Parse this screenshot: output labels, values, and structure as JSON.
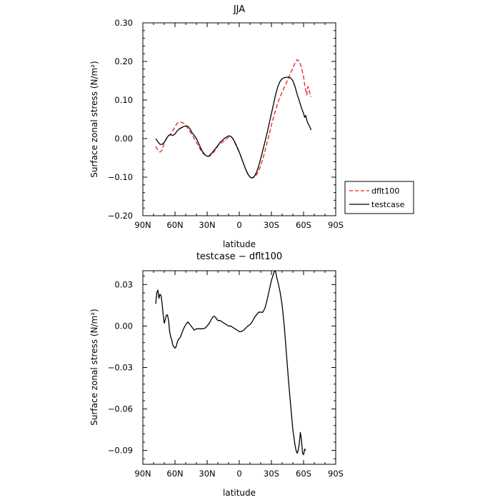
{
  "chart_data": [
    {
      "type": "line",
      "title": "JJA",
      "xlabel": "latitude",
      "ylabel": "Surface zonal stress (N/m²)",
      "xlim": [
        90,
        -90
      ],
      "ylim": [
        -0.2,
        0.3
      ],
      "x_tick_values": [
        90,
        60,
        30,
        0,
        -30,
        -60,
        -90
      ],
      "x_tick_labels": [
        "90N",
        "60N",
        "30N",
        "0",
        "30S",
        "60S",
        "90S"
      ],
      "y_tick_values": [
        -0.2,
        -0.1,
        0.0,
        0.1,
        0.2,
        0.3
      ],
      "y_tick_labels": [
        "−0.20",
        "−0.10",
        "0.00",
        "0.10",
        "0.20",
        "0.30"
      ],
      "legend_position": "right-bottom",
      "series": [
        {
          "name": "dflt100",
          "style": "dashed",
          "color": "#e8201f",
          "points": [
            [
              78,
              -0.02
            ],
            [
              76,
              -0.03
            ],
            [
              74,
              -0.035
            ],
            [
              72,
              -0.03
            ],
            [
              70,
              -0.01
            ],
            [
              67,
              0.005
            ],
            [
              64,
              0.012
            ],
            [
              61,
              0.025
            ],
            [
              58,
              0.04
            ],
            [
              55,
              0.043
            ],
            [
              52,
              0.04
            ],
            [
              49,
              0.03
            ],
            [
              46,
              0.018
            ],
            [
              43,
              0.005
            ],
            [
              40,
              -0.01
            ],
            [
              37,
              -0.025
            ],
            [
              34,
              -0.038
            ],
            [
              31,
              -0.045
            ],
            [
              28,
              -0.046
            ],
            [
              25,
              -0.04
            ],
            [
              22,
              -0.028
            ],
            [
              19,
              -0.015
            ],
            [
              16,
              -0.01
            ],
            [
              13,
              -0.003
            ],
            [
              10,
              0.003
            ],
            [
              8,
              0.006
            ],
            [
              6,
              0.0
            ],
            [
              4,
              -0.012
            ],
            [
              2,
              -0.025
            ],
            [
              0,
              -0.035
            ],
            [
              -2,
              -0.05
            ],
            [
              -4,
              -0.065
            ],
            [
              -6,
              -0.08
            ],
            [
              -8,
              -0.092
            ],
            [
              -10,
              -0.1
            ],
            [
              -12,
              -0.102
            ],
            [
              -14,
              -0.1
            ],
            [
              -16,
              -0.094
            ],
            [
              -18,
              -0.085
            ],
            [
              -20,
              -0.07
            ],
            [
              -22,
              -0.052
            ],
            [
              -24,
              -0.032
            ],
            [
              -26,
              -0.01
            ],
            [
              -28,
              0.012
            ],
            [
              -30,
              0.035
            ],
            [
              -32,
              0.055
            ],
            [
              -34,
              0.075
            ],
            [
              -36,
              0.093
            ],
            [
              -38,
              0.108
            ],
            [
              -40,
              0.12
            ],
            [
              -42,
              0.133
            ],
            [
              -44,
              0.145
            ],
            [
              -46,
              0.158
            ],
            [
              -48,
              0.17
            ],
            [
              -50,
              0.183
            ],
            [
              -52,
              0.196
            ],
            [
              -54,
              0.205
            ],
            [
              -56,
              0.2
            ],
            [
              -58,
              0.185
            ],
            [
              -60,
              0.16
            ],
            [
              -61,
              0.14
            ],
            [
              -62,
              0.125
            ],
            [
              -63,
              0.113
            ],
            [
              -64,
              0.135
            ],
            [
              -65,
              0.13
            ],
            [
              -66,
              0.115
            ],
            [
              -67,
              0.108
            ]
          ]
        },
        {
          "name": "testcase",
          "style": "solid",
          "color": "#000000",
          "points": [
            [
              78,
              0.0
            ],
            [
              76,
              -0.008
            ],
            [
              74,
              -0.015
            ],
            [
              72,
              -0.015
            ],
            [
              70,
              -0.01
            ],
            [
              68,
              0.0
            ],
            [
              66,
              0.008
            ],
            [
              64,
              0.01
            ],
            [
              62,
              0.008
            ],
            [
              60,
              0.012
            ],
            [
              58,
              0.02
            ],
            [
              56,
              0.025
            ],
            [
              54,
              0.028
            ],
            [
              52,
              0.031
            ],
            [
              50,
              0.033
            ],
            [
              48,
              0.032
            ],
            [
              46,
              0.025
            ],
            [
              44,
              0.015
            ],
            [
              42,
              0.008
            ],
            [
              40,
              0.0
            ],
            [
              38,
              -0.012
            ],
            [
              36,
              -0.025
            ],
            [
              34,
              -0.035
            ],
            [
              32,
              -0.042
            ],
            [
              30,
              -0.046
            ],
            [
              28,
              -0.045
            ],
            [
              26,
              -0.038
            ],
            [
              24,
              -0.032
            ],
            [
              22,
              -0.025
            ],
            [
              20,
              -0.018
            ],
            [
              18,
              -0.01
            ],
            [
              16,
              -0.005
            ],
            [
              14,
              0.0
            ],
            [
              12,
              0.004
            ],
            [
              10,
              0.007
            ],
            [
              8,
              0.006
            ],
            [
              6,
              0.0
            ],
            [
              4,
              -0.01
            ],
            [
              2,
              -0.022
            ],
            [
              0,
              -0.035
            ],
            [
              -2,
              -0.05
            ],
            [
              -4,
              -0.065
            ],
            [
              -6,
              -0.08
            ],
            [
              -8,
              -0.092
            ],
            [
              -10,
              -0.1
            ],
            [
              -12,
              -0.102
            ],
            [
              -14,
              -0.098
            ],
            [
              -16,
              -0.088
            ],
            [
              -18,
              -0.072
            ],
            [
              -20,
              -0.052
            ],
            [
              -22,
              -0.03
            ],
            [
              -24,
              -0.008
            ],
            [
              -26,
              0.015
            ],
            [
              -28,
              0.04
            ],
            [
              -30,
              0.065
            ],
            [
              -32,
              0.09
            ],
            [
              -34,
              0.115
            ],
            [
              -36,
              0.135
            ],
            [
              -38,
              0.148
            ],
            [
              -40,
              0.155
            ],
            [
              -42,
              0.158
            ],
            [
              -44,
              0.159
            ],
            [
              -46,
              0.159
            ],
            [
              -48,
              0.157
            ],
            [
              -50,
              0.15
            ],
            [
              -52,
              0.135
            ],
            [
              -54,
              0.115
            ],
            [
              -56,
              0.098
            ],
            [
              -58,
              0.08
            ],
            [
              -60,
              0.065
            ],
            [
              -61,
              0.055
            ],
            [
              -62,
              0.06
            ],
            [
              -63,
              0.048
            ],
            [
              -64,
              0.04
            ],
            [
              -65,
              0.035
            ],
            [
              -66,
              0.03
            ],
            [
              -67,
              0.022
            ]
          ]
        }
      ]
    },
    {
      "type": "line",
      "title": "testcase − dflt100",
      "xlabel": "latitude",
      "ylabel": "Surface zonal stress (N/m²)",
      "xlim": [
        90,
        -90
      ],
      "ylim": [
        -0.1,
        0.04
      ],
      "x_tick_values": [
        90,
        60,
        30,
        0,
        -30,
        -60,
        -90
      ],
      "x_tick_labels": [
        "90N",
        "60N",
        "30N",
        "0",
        "30S",
        "60S",
        "90S"
      ],
      "y_tick_values": [
        -0.09,
        -0.06,
        -0.03,
        0.0,
        0.03
      ],
      "y_tick_labels": [
        "−0.09",
        "−0.06",
        "−0.03",
        "0.00",
        "0.03"
      ],
      "series": [
        {
          "name": "",
          "style": "solid",
          "color": "#000000",
          "points": [
            [
              78,
              0.016
            ],
            [
              77,
              0.024
            ],
            [
              76,
              0.026
            ],
            [
              75,
              0.02
            ],
            [
              74,
              0.023
            ],
            [
              73,
              0.022
            ],
            [
              72,
              0.016
            ],
            [
              71,
              0.008
            ],
            [
              70,
              0.002
            ],
            [
              69,
              0.005
            ],
            [
              68,
              0.008
            ],
            [
              67,
              0.008
            ],
            [
              66,
              0.004
            ],
            [
              65,
              -0.004
            ],
            [
              64,
              -0.008
            ],
            [
              63,
              -0.01
            ],
            [
              62,
              -0.014
            ],
            [
              61,
              -0.015
            ],
            [
              60,
              -0.016
            ],
            [
              59,
              -0.015
            ],
            [
              58,
              -0.012
            ],
            [
              57,
              -0.01
            ],
            [
              56,
              -0.009
            ],
            [
              55,
              -0.008
            ],
            [
              54,
              -0.006
            ],
            [
              53,
              -0.004
            ],
            [
              52,
              -0.002
            ],
            [
              50,
              0.001
            ],
            [
              48,
              0.003
            ],
            [
              47,
              0.002
            ],
            [
              46,
              0.001
            ],
            [
              44,
              -0.001
            ],
            [
              42,
              -0.003
            ],
            [
              40,
              -0.002
            ],
            [
              38,
              -0.002
            ],
            [
              36,
              -0.002
            ],
            [
              34,
              -0.002
            ],
            [
              32,
              -0.0015
            ],
            [
              30,
              0.0
            ],
            [
              28,
              0.002
            ],
            [
              26,
              0.005
            ],
            [
              25,
              0.006
            ],
            [
              24,
              0.007
            ],
            [
              23,
              0.007
            ],
            [
              22,
              0.006
            ],
            [
              20,
              0.004
            ],
            [
              18,
              0.004
            ],
            [
              16,
              0.003
            ],
            [
              14,
              0.002
            ],
            [
              12,
              0.001
            ],
            [
              10,
              0.0
            ],
            [
              8,
              0.0
            ],
            [
              6,
              -0.001
            ],
            [
              4,
              -0.002
            ],
            [
              2,
              -0.003
            ],
            [
              0,
              -0.004
            ],
            [
              -2,
              -0.004
            ],
            [
              -4,
              -0.003
            ],
            [
              -6,
              -0.0015
            ],
            [
              -8,
              0.0
            ],
            [
              -10,
              0.001
            ],
            [
              -12,
              0.003
            ],
            [
              -14,
              0.006
            ],
            [
              -16,
              0.008
            ],
            [
              -18,
              0.01
            ],
            [
              -20,
              0.01
            ],
            [
              -22,
              0.01
            ],
            [
              -24,
              0.013
            ],
            [
              -26,
              0.019
            ],
            [
              -28,
              0.026
            ],
            [
              -30,
              0.033
            ],
            [
              -32,
              0.038
            ],
            [
              -33,
              0.04
            ],
            [
              -34,
              0.039
            ],
            [
              -35,
              0.035
            ],
            [
              -36,
              0.032
            ],
            [
              -38,
              0.025
            ],
            [
              -40,
              0.015
            ],
            [
              -42,
              0.0
            ],
            [
              -44,
              -0.02
            ],
            [
              -46,
              -0.04
            ],
            [
              -48,
              -0.058
            ],
            [
              -50,
              -0.075
            ],
            [
              -52,
              -0.086
            ],
            [
              -53,
              -0.09
            ],
            [
              -54,
              -0.092
            ],
            [
              -55,
              -0.09
            ],
            [
              -56,
              -0.085
            ],
            [
              -57,
              -0.077
            ],
            [
              -58,
              -0.082
            ],
            [
              -59,
              -0.092
            ],
            [
              -60,
              -0.093
            ],
            [
              -61,
              -0.089
            ],
            [
              -62,
              -0.09
            ]
          ]
        }
      ]
    }
  ]
}
